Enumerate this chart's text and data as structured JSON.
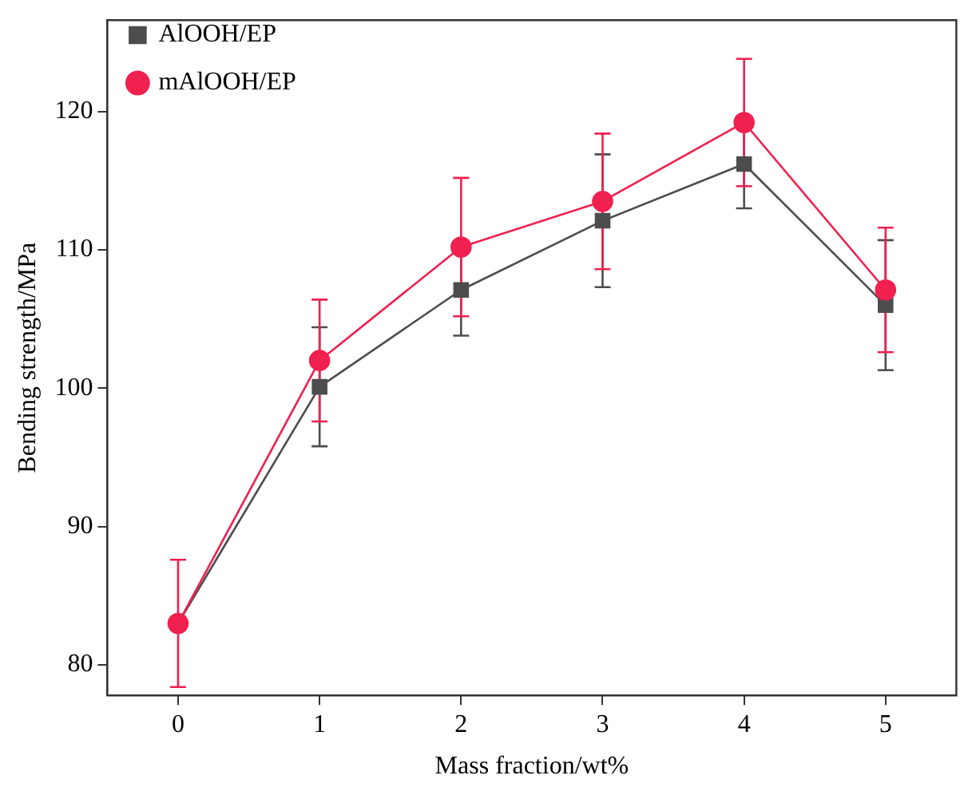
{
  "chart_data": {
    "type": "line",
    "xlabel": "Mass fraction/wt%",
    "ylabel": "Bending strength/MPa",
    "x": [
      0,
      1,
      2,
      3,
      4,
      5
    ],
    "xlim": [
      -0.5,
      5.5
    ],
    "xticks": [
      0,
      1,
      2,
      3,
      4,
      5
    ],
    "ylim": [
      77.8,
      126.6
    ],
    "yticks": [
      80,
      90,
      100,
      110,
      120
    ],
    "legend": "top left",
    "grid": false,
    "series": [
      {
        "name": "AlOOH/EP",
        "color": "#4d4d4d",
        "marker": "square",
        "values": [
          83,
          100.1,
          107.1,
          112.1,
          116.2,
          106.0
        ],
        "errors": [
          null,
          4.3,
          3.3,
          4.8,
          3.2,
          4.7
        ]
      },
      {
        "name": "mAlOOH/EP",
        "color": "#f0204f",
        "marker": "circle",
        "values": [
          83,
          102.0,
          110.2,
          113.5,
          119.2,
          107.1
        ],
        "errors": [
          4.6,
          4.4,
          5.0,
          4.9,
          4.6,
          4.5
        ]
      }
    ]
  }
}
